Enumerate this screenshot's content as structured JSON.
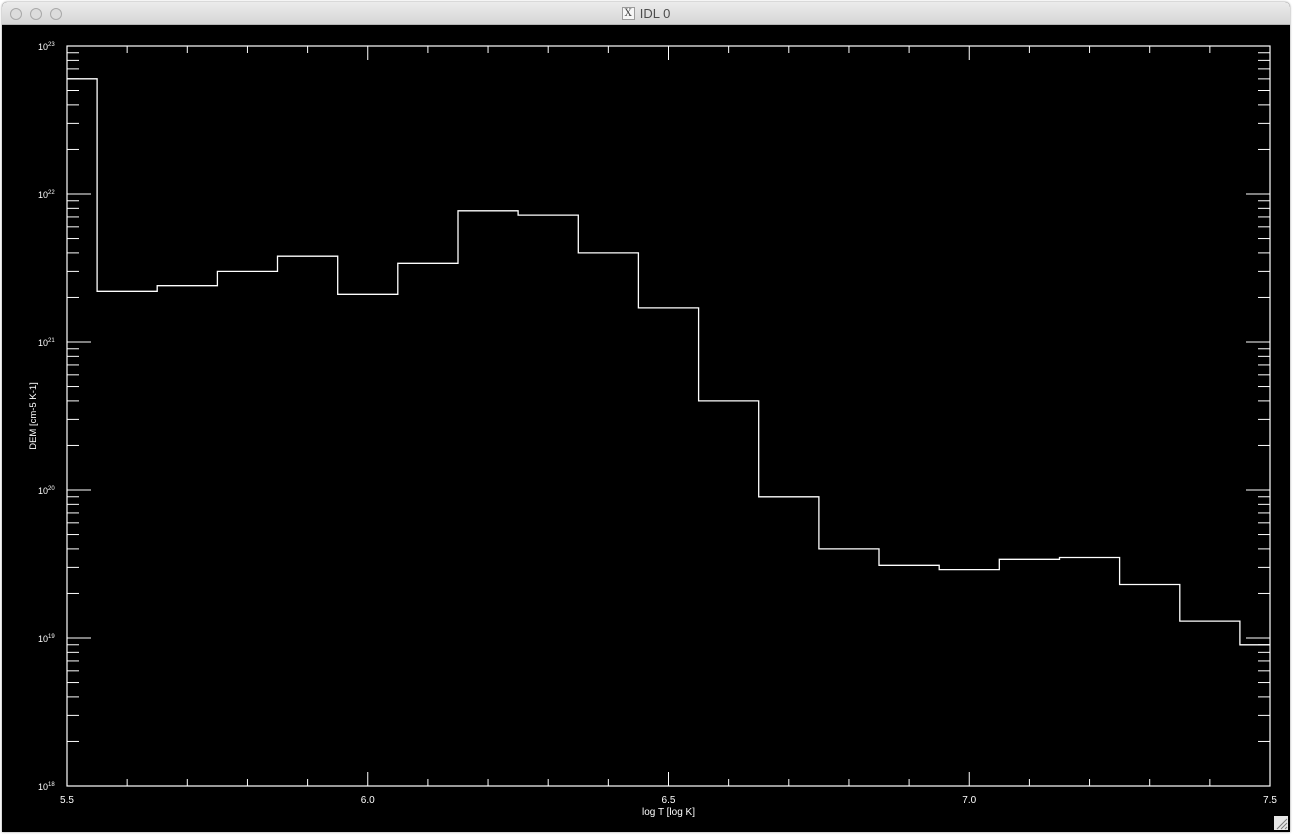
{
  "window": {
    "title": "IDL 0",
    "app_icon": "x11-icon",
    "x_glyph": "X"
  },
  "colors": {
    "background": "#000000",
    "foreground": "#ffffff"
  },
  "chart_data": {
    "type": "line",
    "style": "step-histogram",
    "title": "",
    "xlabel": "log T [log K]",
    "ylabel": "DEM [cm-5 K-1]",
    "xlim": [
      5.5,
      7.5
    ],
    "ylim": [
      1e+18,
      1e+23
    ],
    "yscale": "log",
    "grid": false,
    "x_ticks": [
      "5.5",
      "6.0",
      "6.5",
      "7.0",
      "7.5"
    ],
    "y_ticks": [
      {
        "base": "10",
        "exp": "18"
      },
      {
        "base": "10",
        "exp": "19"
      },
      {
        "base": "10",
        "exp": "20"
      },
      {
        "base": "10",
        "exp": "21"
      },
      {
        "base": "10",
        "exp": "22"
      },
      {
        "base": "10",
        "exp": "23"
      }
    ],
    "bins": [
      {
        "x0": 5.45,
        "x1": 5.55,
        "y": 6e+22
      },
      {
        "x0": 5.55,
        "x1": 5.65,
        "y": 2.2e+21
      },
      {
        "x0": 5.65,
        "x1": 5.75,
        "y": 2.4e+21
      },
      {
        "x0": 5.75,
        "x1": 5.85,
        "y": 3e+21
      },
      {
        "x0": 5.85,
        "x1": 5.95,
        "y": 3.8e+21
      },
      {
        "x0": 5.95,
        "x1": 6.05,
        "y": 2.1e+21
      },
      {
        "x0": 6.05,
        "x1": 6.15,
        "y": 3.4e+21
      },
      {
        "x0": 6.15,
        "x1": 6.25,
        "y": 7.7e+21
      },
      {
        "x0": 6.25,
        "x1": 6.35,
        "y": 7.2e+21
      },
      {
        "x0": 6.35,
        "x1": 6.45,
        "y": 4e+21
      },
      {
        "x0": 6.45,
        "x1": 6.55,
        "y": 1.7e+21
      },
      {
        "x0": 6.55,
        "x1": 6.65,
        "y": 4e+20
      },
      {
        "x0": 6.65,
        "x1": 6.75,
        "y": 9e+19
      },
      {
        "x0": 6.75,
        "x1": 6.85,
        "y": 4e+19
      },
      {
        "x0": 6.85,
        "x1": 6.95,
        "y": 3.1e+19
      },
      {
        "x0": 6.95,
        "x1": 7.05,
        "y": 2.9e+19
      },
      {
        "x0": 7.05,
        "x1": 7.15,
        "y": 3.4e+19
      },
      {
        "x0": 7.15,
        "x1": 7.25,
        "y": 3.5e+19
      },
      {
        "x0": 7.25,
        "x1": 7.35,
        "y": 2.3e+19
      },
      {
        "x0": 7.35,
        "x1": 7.45,
        "y": 1.3e+19
      },
      {
        "x0": 7.45,
        "x1": 7.55,
        "y": 9e+18
      }
    ]
  }
}
